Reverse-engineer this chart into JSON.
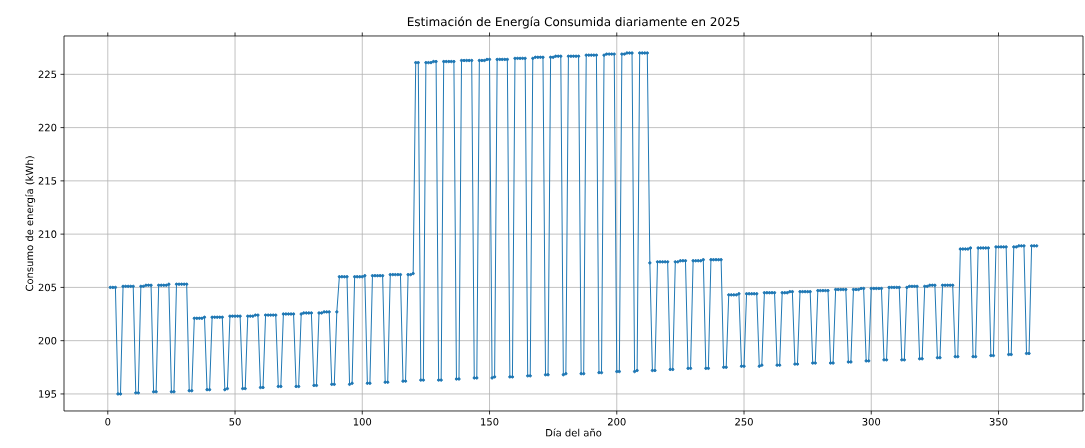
{
  "chart_data": {
    "type": "line",
    "title": "Estimación de Energía Consumida diariamente en 2025",
    "xlabel": "Día del año",
    "ylabel": "Consumo de energía (kWh)",
    "x": [
      1,
      2,
      3,
      4,
      5,
      6,
      7,
      8,
      9,
      10,
      11,
      12,
      13,
      14,
      15,
      16,
      17,
      18,
      19,
      20,
      21,
      22,
      23,
      24,
      25,
      26,
      27,
      28,
      29,
      30,
      31,
      32,
      33,
      34,
      35,
      36,
      37,
      38,
      39,
      40,
      41,
      42,
      43,
      44,
      45,
      46,
      47,
      48,
      49,
      50,
      51,
      52,
      53,
      54,
      55,
      56,
      57,
      58,
      59,
      60,
      61,
      62,
      63,
      64,
      65,
      66,
      67,
      68,
      69,
      70,
      71,
      72,
      73,
      74,
      75,
      76,
      77,
      78,
      79,
      80,
      81,
      82,
      83,
      84,
      85,
      86,
      87,
      88,
      89,
      90,
      91,
      92,
      93,
      94,
      95,
      96,
      97,
      98,
      99,
      100,
      101,
      102,
      103,
      104,
      105,
      106,
      107,
      108,
      109,
      110,
      111,
      112,
      113,
      114,
      115,
      116,
      117,
      118,
      119,
      120,
      121,
      122,
      123,
      124,
      125,
      126,
      127,
      128,
      129,
      130,
      131,
      132,
      133,
      134,
      135,
      136,
      137,
      138,
      139,
      140,
      141,
      142,
      143,
      144,
      145,
      146,
      147,
      148,
      149,
      150,
      151,
      152,
      153,
      154,
      155,
      156,
      157,
      158,
      159,
      160,
      161,
      162,
      163,
      164,
      165,
      166,
      167,
      168,
      169,
      170,
      171,
      172,
      173,
      174,
      175,
      176,
      177,
      178,
      179,
      180,
      181,
      182,
      183,
      184,
      185,
      186,
      187,
      188,
      189,
      190,
      191,
      192,
      193,
      194,
      195,
      196,
      197,
      198,
      199,
      200,
      201,
      202,
      203,
      204,
      205,
      206,
      207,
      208,
      209,
      210,
      211,
      212,
      213,
      214,
      215,
      216,
      217,
      218,
      219,
      220,
      221,
      222,
      223,
      224,
      225,
      226,
      227,
      228,
      229,
      230,
      231,
      232,
      233,
      234,
      235,
      236,
      237,
      238,
      239,
      240,
      241,
      242,
      243,
      244,
      245,
      246,
      247,
      248,
      249,
      250,
      251,
      252,
      253,
      254,
      255,
      256,
      257,
      258,
      259,
      260,
      261,
      262,
      263,
      264,
      265,
      266,
      267,
      268,
      269,
      270,
      271,
      272,
      273,
      274,
      275,
      276,
      277,
      278,
      279,
      280,
      281,
      282,
      283,
      284,
      285,
      286,
      287,
      288,
      289,
      290,
      291,
      292,
      293,
      294,
      295,
      296,
      297,
      298,
      299,
      300,
      301,
      302,
      303,
      304,
      305,
      306,
      307,
      308,
      309,
      310,
      311,
      312,
      313,
      314,
      315,
      316,
      317,
      318,
      319,
      320,
      321,
      322,
      323,
      324,
      325,
      326,
      327,
      328,
      329,
      330,
      331,
      332,
      333,
      334,
      335,
      336,
      337,
      338,
      339,
      340,
      341,
      342,
      343,
      344,
      345,
      346,
      347,
      348,
      349,
      350,
      351,
      352,
      353,
      354,
      355,
      356,
      357,
      358,
      359,
      360,
      361,
      362,
      363,
      364,
      365
    ],
    "values": [
      205.0,
      205.0,
      205.0,
      195.0,
      195.0,
      205.1,
      205.1,
      205.1,
      205.1,
      205.1,
      195.1,
      195.1,
      205.1,
      205.1,
      205.2,
      205.2,
      205.2,
      195.2,
      195.2,
      205.2,
      205.2,
      205.2,
      205.2,
      205.3,
      195.2,
      195.2,
      205.3,
      205.3,
      205.3,
      205.3,
      205.3,
      195.3,
      195.3,
      202.1,
      202.1,
      202.1,
      202.1,
      202.2,
      195.4,
      195.4,
      202.2,
      202.2,
      202.2,
      202.2,
      202.2,
      195.4,
      195.5,
      202.3,
      202.3,
      202.3,
      202.3,
      202.3,
      195.5,
      195.5,
      202.3,
      202.3,
      202.3,
      202.4,
      202.4,
      195.6,
      195.6,
      202.4,
      202.4,
      202.4,
      202.4,
      202.4,
      195.7,
      195.7,
      202.5,
      202.5,
      202.5,
      202.5,
      202.5,
      195.7,
      195.7,
      202.5,
      202.6,
      202.6,
      202.6,
      202.6,
      195.8,
      195.8,
      202.6,
      202.6,
      202.7,
      202.7,
      202.7,
      195.9,
      195.9,
      202.7,
      206.0,
      206.0,
      206.0,
      206.0,
      195.9,
      196.0,
      206.0,
      206.0,
      206.0,
      206.0,
      206.1,
      196.0,
      196.0,
      206.1,
      206.1,
      206.1,
      206.1,
      206.1,
      196.1,
      196.1,
      206.2,
      206.2,
      206.2,
      206.2,
      206.2,
      196.2,
      196.2,
      206.2,
      206.2,
      206.3,
      226.1,
      226.1,
      196.3,
      196.3,
      226.1,
      226.1,
      226.1,
      226.2,
      226.2,
      196.3,
      196.3,
      226.2,
      226.2,
      226.2,
      226.2,
      226.2,
      196.4,
      196.4,
      226.3,
      226.3,
      226.3,
      226.3,
      226.3,
      196.5,
      196.5,
      226.3,
      226.3,
      226.3,
      226.4,
      226.4,
      196.5,
      196.6,
      226.4,
      226.4,
      226.4,
      226.4,
      226.4,
      196.6,
      196.6,
      226.5,
      226.5,
      226.5,
      226.5,
      226.5,
      196.7,
      196.7,
      226.5,
      226.6,
      226.6,
      226.6,
      226.6,
      196.8,
      196.8,
      226.6,
      226.6,
      226.7,
      226.7,
      226.7,
      196.8,
      196.9,
      226.7,
      226.7,
      226.7,
      226.7,
      226.7,
      196.9,
      196.9,
      226.8,
      226.8,
      226.8,
      226.8,
      226.8,
      197.0,
      197.0,
      226.8,
      226.9,
      226.9,
      226.9,
      226.9,
      197.1,
      197.1,
      226.9,
      226.9,
      227.0,
      227.0,
      227.0,
      197.1,
      197.2,
      227.0,
      227.0,
      227.0,
      227.0,
      207.3,
      197.2,
      197.2,
      207.4,
      207.4,
      207.4,
      207.4,
      207.4,
      197.3,
      197.3,
      207.4,
      207.4,
      207.5,
      207.5,
      207.5,
      197.4,
      197.4,
      207.5,
      207.5,
      207.5,
      207.5,
      207.6,
      197.4,
      197.4,
      207.6,
      207.6,
      207.6,
      207.6,
      207.6,
      197.5,
      197.5,
      204.3,
      204.3,
      204.3,
      204.3,
      204.4,
      197.6,
      197.6,
      204.4,
      204.4,
      204.4,
      204.4,
      204.4,
      197.6,
      197.7,
      204.5,
      204.5,
      204.5,
      204.5,
      204.5,
      197.7,
      197.7,
      204.5,
      204.5,
      204.5,
      204.6,
      204.6,
      197.8,
      197.8,
      204.6,
      204.6,
      204.6,
      204.6,
      204.6,
      197.9,
      197.9,
      204.7,
      204.7,
      204.7,
      204.7,
      204.7,
      197.9,
      197.9,
      204.8,
      204.8,
      204.8,
      204.8,
      204.8,
      198.0,
      198.0,
      204.8,
      204.8,
      204.8,
      204.9,
      204.9,
      198.1,
      198.1,
      204.9,
      204.9,
      204.9,
      204.9,
      204.9,
      198.2,
      198.2,
      205.0,
      205.0,
      205.0,
      205.0,
      205.0,
      198.2,
      198.2,
      205.0,
      205.1,
      205.1,
      205.1,
      205.1,
      198.3,
      198.3,
      205.1,
      205.1,
      205.2,
      205.2,
      205.2,
      198.4,
      198.4,
      205.2,
      205.2,
      205.2,
      205.2,
      205.2,
      198.5,
      198.5,
      208.6,
      208.6,
      208.6,
      208.6,
      208.7,
      198.5,
      198.5,
      208.7,
      208.7,
      208.7,
      208.7,
      208.7,
      198.6,
      198.6,
      208.8,
      208.8,
      208.8,
      208.8,
      208.8,
      198.7,
      198.7,
      208.8,
      208.8,
      208.9,
      208.9,
      208.9,
      198.8,
      198.8,
      208.9,
      208.9,
      208.9
    ],
    "color": "#1f77b4",
    "marker": "circle",
    "line_style": "solid",
    "grid": true,
    "xlim": [
      -17.2,
      383.2
    ],
    "ylim": [
      193.4,
      228.6
    ],
    "xticks": [
      0,
      50,
      100,
      150,
      200,
      250,
      300,
      350
    ],
    "yticks": [
      195,
      200,
      205,
      210,
      215,
      220,
      225
    ]
  }
}
